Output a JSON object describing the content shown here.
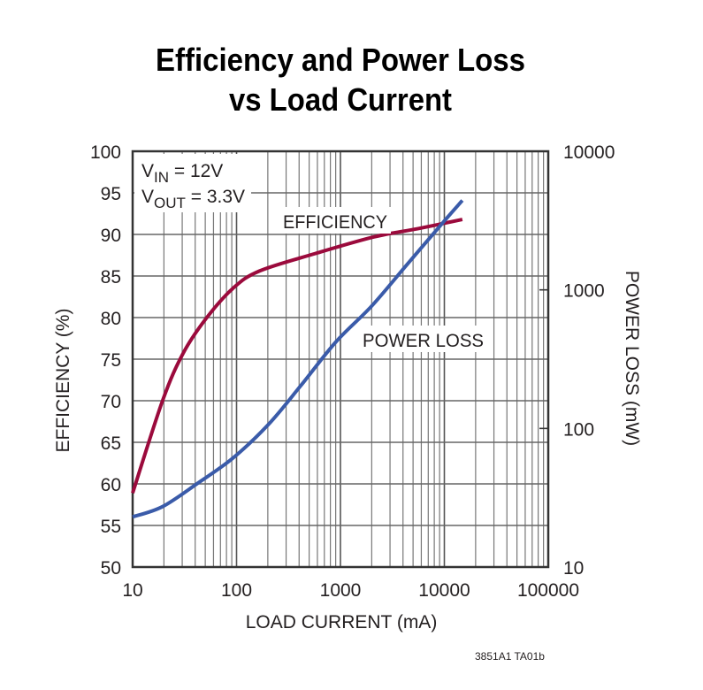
{
  "chart_data": {
    "type": "line",
    "title_line1": "Efficiency and Power Loss",
    "title_line2": "vs Load Current",
    "xlabel": "LOAD CURRENT (mA)",
    "ylabel_left": "EFFICIENCY (%)",
    "ylabel_right": "POWER LOSS (mW)",
    "x_scale": "log",
    "xlim": [
      10,
      100000
    ],
    "x_ticks": [
      "10",
      "100",
      "1000",
      "10000",
      "100000"
    ],
    "y_left_lim": [
      50,
      100
    ],
    "y_left_ticks": [
      "50",
      "55",
      "60",
      "65",
      "70",
      "75",
      "80",
      "85",
      "90",
      "95",
      "100"
    ],
    "y_right_scale": "log",
    "y_right_lim": [
      10,
      10000
    ],
    "y_right_ticks": [
      "10",
      "100",
      "1000",
      "10000"
    ],
    "grid": true,
    "conditions": {
      "vin": {
        "base": "V",
        "sub": "IN",
        "rest": " = 12V"
      },
      "vout": {
        "base": "V",
        "sub": "OUT",
        "rest": " = 3.3V"
      }
    },
    "series": [
      {
        "name": "EFFICIENCY",
        "axis": "left",
        "color": "#9b0a3c",
        "x": [
          10,
          19.4,
          30.6,
          51,
          92,
          166,
          572,
          2100,
          5600,
          14900
        ],
        "y": [
          58.9,
          70.0,
          75.7,
          79.9,
          83.5,
          85.6,
          87.7,
          89.7,
          90.7,
          91.8
        ]
      },
      {
        "name": "POWER LOSS",
        "axis": "right",
        "color": "#3a5ba9",
        "x": [
          10,
          19.4,
          42.4,
          92,
          203,
          414,
          906,
          1980,
          4320,
          9440,
          14900
        ],
        "y": [
          23,
          27.3,
          40.3,
          61,
          107,
          203,
          422,
          759,
          1506,
          2990,
          4420
        ]
      }
    ],
    "footnote": "3851A1 TA01b"
  }
}
